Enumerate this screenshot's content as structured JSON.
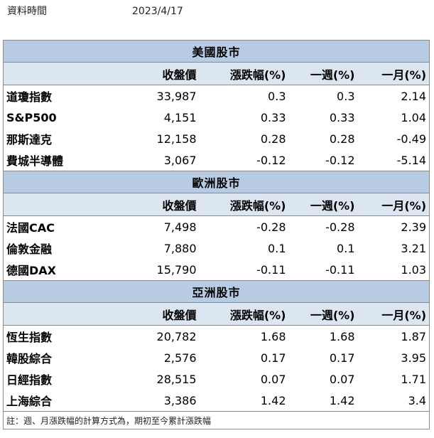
{
  "info": {
    "label": "資料時間",
    "date": "2023/4/17"
  },
  "columns": {
    "price": "收盤價",
    "change": "漲跌幅(%)",
    "week": "一週(%)",
    "month": "一月(%)"
  },
  "sections": [
    {
      "title": "美國股市",
      "rows": [
        {
          "name": "道瓊指數",
          "price": "33,987",
          "change": "0.3",
          "week": "0.3",
          "month": "2.14"
        },
        {
          "name": "S&P500",
          "price": "4,151",
          "change": "0.33",
          "week": "0.33",
          "month": "1.04"
        },
        {
          "name": "那斯達克",
          "price": "12,158",
          "change": "0.28",
          "week": "0.28",
          "month": "-0.49"
        },
        {
          "name": "費城半導體",
          "price": "3,067",
          "change": "-0.12",
          "week": "-0.12",
          "month": "-5.14"
        }
      ]
    },
    {
      "title": "歐洲股市",
      "rows": [
        {
          "name": "法國CAC",
          "price": "7,498",
          "change": "-0.28",
          "week": "-0.28",
          "month": "2.39"
        },
        {
          "name": "倫敦金融",
          "price": "7,880",
          "change": "0.1",
          "week": "0.1",
          "month": "3.21"
        },
        {
          "name": "德國DAX",
          "price": "15,790",
          "change": "-0.11",
          "week": "-0.11",
          "month": "1.03"
        }
      ]
    },
    {
      "title": "亞洲股市",
      "rows": [
        {
          "name": "恆生指數",
          "price": "20,782",
          "change": "1.68",
          "week": "1.68",
          "month": "1.87"
        },
        {
          "name": "韓股綜合",
          "price": "2,576",
          "change": "0.17",
          "week": "0.17",
          "month": "3.95"
        },
        {
          "name": "日經指數",
          "price": "28,515",
          "change": "0.07",
          "week": "0.07",
          "month": "1.71"
        },
        {
          "name": "上海綜合",
          "price": "3,386",
          "change": "1.42",
          "week": "1.42",
          "month": "3.4"
        }
      ]
    }
  ],
  "note": "註：週、月漲跌幅的計算方式為，期初至今累計漲跌幅",
  "colors": {
    "section_header_bg": "#b7cbe3",
    "column_header_bg": "#dce6f1",
    "border": "#8a8a8a"
  }
}
